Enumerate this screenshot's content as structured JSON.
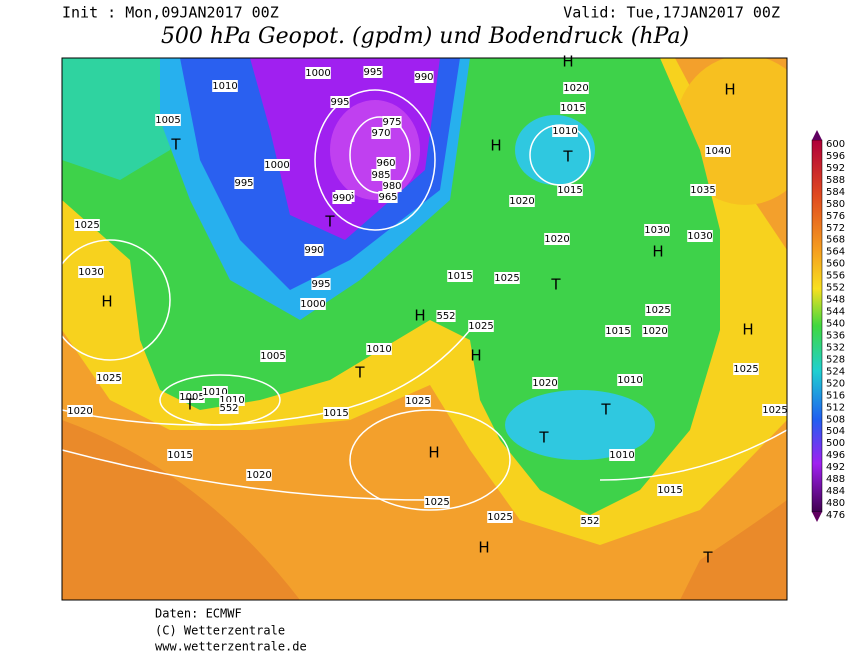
{
  "header": {
    "init": "Init : Mon,09JAN2017 00Z",
    "valid": "Valid: Tue,17JAN2017 00Z",
    "title": "500 hPa Geopot. (gpdm) und Bodendruck (hPa)"
  },
  "colorbar": {
    "labels": [
      600,
      596,
      592,
      588,
      584,
      580,
      576,
      572,
      568,
      564,
      560,
      556,
      552,
      548,
      544,
      540,
      536,
      532,
      528,
      524,
      520,
      516,
      512,
      508,
      504,
      500,
      496,
      492,
      488,
      484,
      480,
      476
    ]
  },
  "map": {
    "labels": [
      "1010",
      "1000",
      "995",
      "990",
      "995",
      "975",
      "970",
      "960",
      "985",
      "980",
      "985",
      "965",
      "990",
      "1005",
      "T",
      "1000",
      "995",
      "T",
      "990",
      "995",
      "1000",
      "1025",
      "1030",
      "H",
      "1005",
      "1010",
      "T",
      "1025",
      "1020",
      "1005",
      "1010",
      "1010",
      "T",
      "552",
      "1015",
      "1025",
      "1015",
      "1020",
      "H",
      "1025",
      "1025",
      "H",
      "552",
      "1015",
      "1010",
      "T",
      "T",
      "1020",
      "1010",
      "1015",
      "1020",
      "1025",
      "T",
      "1025",
      "1015",
      "1025",
      "H",
      "552",
      "H",
      "1020",
      "1020",
      "H",
      "1020",
      "1015",
      "1010",
      "T",
      "1015",
      "H",
      "1035",
      "1040",
      "1030",
      "1030",
      "H",
      "H",
      "H",
      "1025",
      "1025",
      "T"
    ]
  },
  "footer": {
    "source": "Daten: ECMWF",
    "copyright": "(C) Wetterzentrale",
    "url": "www.wetterzentrale.de"
  }
}
